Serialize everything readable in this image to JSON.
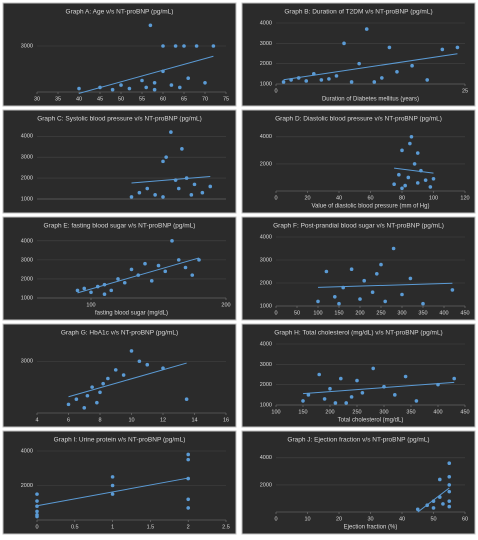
{
  "chart_data": [
    {
      "type": "scatter",
      "title": "Graph A: Age v/s NT-proBNP (pg/mL)",
      "xlim": [
        30,
        75
      ],
      "xticks": [
        30,
        35,
        40,
        45,
        50,
        55,
        60,
        65,
        70,
        75
      ],
      "ylim": [
        1000,
        4000
      ],
      "yticks": [
        3000
      ],
      "color": "#5b9bd5",
      "trendline": true,
      "x": [
        40,
        45,
        48,
        50,
        52,
        55,
        56,
        58,
        60,
        60,
        62,
        63,
        64,
        65,
        66,
        68,
        70,
        57,
        72,
        58
      ],
      "values": [
        1150,
        1200,
        1100,
        1300,
        1150,
        1500,
        1200,
        1400,
        1900,
        3000,
        1300,
        3000,
        1200,
        3000,
        1600,
        3000,
        1400,
        3900,
        3000,
        1100
      ]
    },
    {
      "type": "scatter",
      "title": "Graph B: Duration of T2DM v/s NT-proBNP (pg/mL)",
      "x_label": "Duration of Diabetes mellitus (years)",
      "xlim": [
        0,
        25
      ],
      "xticks": [
        0,
        25
      ],
      "ylim": [
        1000,
        4000
      ],
      "yticks": [
        1000,
        2000,
        3000,
        4000
      ],
      "color": "#5b9bd5",
      "trendline": true,
      "x": [
        1,
        2,
        3,
        4,
        5,
        6,
        8,
        9,
        10,
        11,
        12,
        14,
        15,
        16,
        18,
        20,
        22,
        24,
        13,
        7
      ],
      "values": [
        1100,
        1200,
        1300,
        1150,
        1500,
        1200,
        1400,
        3000,
        1100,
        2000,
        3700,
        1300,
        2800,
        1600,
        1900,
        1200,
        2700,
        2800,
        1100,
        1250
      ]
    },
    {
      "type": "scatter",
      "title": "Graph C: Systolic blood pressure v/s NT-proBNP (pg/mL)",
      "xlim": [
        80,
        200
      ],
      "ylim": [
        1000,
        4300
      ],
      "yticks": [
        1000,
        2000,
        3000,
        4000
      ],
      "color": "#5b9bd5",
      "trendline": true,
      "x": [
        140,
        145,
        150,
        155,
        160,
        162,
        165,
        170,
        175,
        180,
        185,
        160,
        168,
        172,
        178,
        190
      ],
      "values": [
        1100,
        1300,
        1500,
        1200,
        2800,
        3000,
        4200,
        1500,
        2000,
        1700,
        1300,
        1100,
        1900,
        3400,
        1200,
        1600
      ]
    },
    {
      "type": "scatter",
      "title": "Graph D: Diastolic blood pressure v/s NT-proBNP (pg/mL)",
      "x_label": "Value of diastolic blood pressure (mm of Hg)",
      "xlim": [
        0,
        120
      ],
      "xticks": [
        0,
        20,
        40,
        60,
        80,
        100,
        120
      ],
      "ylim": [
        0,
        4500
      ],
      "yticks": [
        2000,
        4000
      ],
      "color": "#5b9bd5",
      "trendline": true,
      "x": [
        75,
        78,
        80,
        82,
        85,
        88,
        90,
        92,
        95,
        98,
        80,
        86,
        90,
        84,
        100
      ],
      "values": [
        500,
        1200,
        3000,
        400,
        3500,
        2000,
        600,
        1500,
        800,
        300,
        200,
        4000,
        2800,
        1000,
        900
      ]
    },
    {
      "type": "scatter",
      "title": "Graph E: fasting blood sugar v/s NT-proBNP (pg/mL)",
      "x_label": "fasting blood sugar (mg/dL)",
      "xlim": [
        60,
        200
      ],
      "xticks": [
        100,
        200
      ],
      "ylim": [
        1000,
        4200
      ],
      "yticks": [
        1000,
        2000,
        3000,
        4000
      ],
      "color": "#5b9bd5",
      "trendline": true,
      "x": [
        90,
        95,
        100,
        105,
        110,
        115,
        120,
        125,
        130,
        135,
        140,
        145,
        150,
        155,
        160,
        165,
        170,
        180,
        175,
        110
      ],
      "values": [
        1400,
        1500,
        1300,
        1600,
        1700,
        1400,
        2000,
        1800,
        2500,
        2200,
        2800,
        1900,
        2700,
        2400,
        4000,
        3000,
        2600,
        3000,
        2200,
        1200
      ]
    },
    {
      "type": "scatter",
      "title": "Graph F: Post-prandial blood sugar v/s NT-proBNP (pg/mL)",
      "xlim": [
        0,
        450
      ],
      "xticks": [
        0,
        50,
        100,
        150,
        200,
        250,
        300,
        350,
        400,
        450
      ],
      "ylim": [
        1000,
        4000
      ],
      "yticks": [
        1000,
        2000,
        3000,
        4000
      ],
      "color": "#5b9bd5",
      "trendline": true,
      "x": [
        100,
        120,
        140,
        160,
        180,
        200,
        210,
        230,
        250,
        260,
        280,
        300,
        320,
        350,
        420,
        150,
        240
      ],
      "values": [
        1200,
        2500,
        1400,
        1800,
        2600,
        1300,
        2100,
        1600,
        2800,
        1200,
        3500,
        1500,
        2200,
        1100,
        1700,
        1100,
        2400
      ]
    },
    {
      "type": "scatter",
      "title": "Graph G: HbA1c v/s NT-proBNP (pg/mL)",
      "xlim": [
        4,
        16
      ],
      "xticks": [
        4,
        6,
        8,
        10,
        12,
        14,
        16
      ],
      "ylim": [
        0,
        4000
      ],
      "yticks": [
        3000
      ],
      "color": "#5b9bd5",
      "trendline": true,
      "x": [
        6,
        6.5,
        7,
        7.2,
        7.5,
        8,
        8.5,
        9,
        9.5,
        10,
        10.5,
        11,
        12,
        13.5,
        7.8,
        8.2
      ],
      "values": [
        500,
        800,
        300,
        1000,
        1500,
        1200,
        2000,
        2500,
        2200,
        3600,
        3000,
        2800,
        2600,
        800,
        600,
        1700
      ]
    },
    {
      "type": "scatter",
      "title": "Graph H: Total cholesterol (mg/dL) v/s NT-proBNP (pg/mL)",
      "x_label": "Total cholesterol (mg/dL)",
      "xlim": [
        100,
        450
      ],
      "xticks": [
        100,
        150,
        200,
        250,
        300,
        350,
        400,
        450
      ],
      "ylim": [
        1000,
        4000
      ],
      "yticks": [
        1000,
        2000,
        3000,
        4000
      ],
      "color": "#5b9bd5",
      "trendline": true,
      "x": [
        150,
        160,
        180,
        190,
        200,
        210,
        220,
        240,
        250,
        260,
        280,
        300,
        320,
        340,
        360,
        400,
        430,
        230
      ],
      "values": [
        1200,
        1500,
        2500,
        1300,
        1800,
        1100,
        2300,
        1400,
        2200,
        1600,
        2800,
        1900,
        1500,
        2400,
        1200,
        2000,
        2300,
        1100
      ]
    },
    {
      "type": "scatter",
      "title": "Graph I: Urine protein v/s NT-proBNP (pg/mL)",
      "xlim": [
        0,
        2.5
      ],
      "xticks": [
        0,
        0.5,
        1,
        1.5,
        2,
        2.5
      ],
      "ylim": [
        0,
        4000
      ],
      "yticks": [
        2000,
        4000
      ],
      "color": "#5b9bd5",
      "trendline": true,
      "x": [
        0,
        0,
        0,
        0,
        0,
        0,
        1,
        1,
        1,
        2,
        2,
        2,
        2,
        2
      ],
      "values": [
        200,
        500,
        800,
        1100,
        1500,
        300,
        1500,
        2000,
        2500,
        1200,
        2400,
        3500,
        3800,
        700
      ]
    },
    {
      "type": "scatter",
      "title": "Graph J: Ejection fraction v/s NT-proBNP (pg/mL)",
      "x_label": "Ejection fraction (%)",
      "xlim": [
        0,
        60
      ],
      "xticks": [
        0,
        10,
        20,
        30,
        40,
        50,
        60
      ],
      "ylim": [
        0,
        4500
      ],
      "yticks": [
        2000,
        4000
      ],
      "color": "#5b9bd5",
      "trendline": true,
      "x": [
        45,
        48,
        50,
        52,
        52,
        55,
        55,
        55,
        55,
        55,
        55,
        50,
        53
      ],
      "values": [
        200,
        500,
        800,
        1100,
        2400,
        400,
        800,
        1500,
        2000,
        2600,
        3600,
        300,
        600
      ]
    }
  ]
}
